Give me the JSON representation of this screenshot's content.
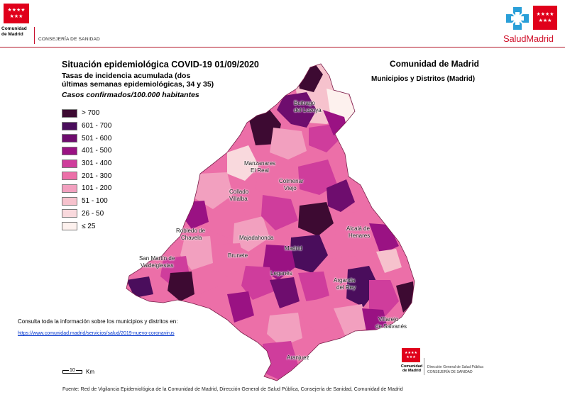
{
  "header": {
    "org_name_line1": "Comunidad",
    "org_name_line2": "de Madrid",
    "department": "CONSEJERÍA DE SANIDAD",
    "brand_part1": "Salud",
    "brand_part2": "Madrid",
    "flag_stars": "★★★★★★★"
  },
  "title": "Situación epidemiológica COVID-19  01/09/2020",
  "subtitle": "Tasas de incidencia acumulada (dos últimas semanas epidemiológicas, 34 y 35)",
  "cases_label": "Casos confirmados/100.000 habitantes",
  "region_title": "Comunidad de Madrid",
  "region_subtitle": "Municipios y Distritos (Madrid)",
  "legend": [
    {
      "label": "> 700",
      "color": "#3d0a32"
    },
    {
      "label": "601 - 700",
      "color": "#4a0d5c"
    },
    {
      "label": "501 - 600",
      "color": "#6e0d6e"
    },
    {
      "label": "401 - 500",
      "color": "#9a1283"
    },
    {
      "label": "301 - 400",
      "color": "#cf3d9c"
    },
    {
      "label": "201 - 300",
      "color": "#ec6fa8"
    },
    {
      "label": "101 - 200",
      "color": "#f2a0bf"
    },
    {
      "label": "51 - 100",
      "color": "#f6c2cd"
    },
    {
      "label": "26 - 50",
      "color": "#f9d9dd"
    },
    {
      "label": "≤ 25",
      "color": "#fdf1ee"
    }
  ],
  "map_labels": {
    "buitrago": "Buitrago",
    "lozoya": "del Lozoya",
    "manzanares": "Manzanares",
    "el_real": "El Real",
    "colmenar": "Colmenar",
    "viejo": "Viejo",
    "collado": "Collado",
    "villalba": "Villalba",
    "robledo": "Robledo de",
    "chavela": "Chavela",
    "majadahonda": "Majadahonda",
    "madrid": "Madrid",
    "alcala": "Alcalá de",
    "henares": "Henares",
    "san_martin": "San Martín de",
    "valdeiglesias": "Valdeiglesias",
    "brunete": "Brunete",
    "leganes": "Leganés",
    "arganda": "Arganda",
    "del_rey": "del Rey",
    "villarejo": "Villarejo",
    "salvanes": "de Salvanés",
    "aranjuez": "Aranjuez"
  },
  "info_text": "Consulta toda la información sobre los municipios y distritos en:",
  "info_link": "https://www.comunidad.madrid/servicios/salud/2019-nuevo-coronavirus",
  "scale": {
    "value": "10",
    "unit": "Km"
  },
  "footer_logo": {
    "org_line1": "Comunidad",
    "org_line2": "de Madrid",
    "dept_line1": "Dirección General de Salud Pública",
    "dept_line2": "CONSEJERÍA DE SANIDAD"
  },
  "source": "Fuente: Red de Vigilancia Epidemiológica de la Comunidad de Madrid, Dirección General de Salud Pública, Consejería de Sanidad, Comunidad de Madrid"
}
